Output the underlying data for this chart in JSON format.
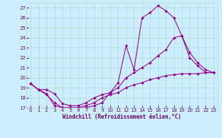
{
  "background_color": "#cceeff",
  "grid_color": "#aaddcc",
  "line_color": "#990099",
  "marker_color": "#990099",
  "xlabel": "Windchill (Refroidissement éolien,°C)",
  "xlabel_color": "#660066",
  "tick_color": "#660066",
  "xlim": [
    -0.5,
    23.5
  ],
  "ylim": [
    17,
    27.5
  ],
  "yticks": [
    17,
    18,
    19,
    20,
    21,
    22,
    23,
    24,
    25,
    26,
    27
  ],
  "xticks": [
    0,
    1,
    2,
    3,
    4,
    5,
    6,
    7,
    8,
    9,
    10,
    11,
    12,
    13,
    14,
    15,
    16,
    17,
    18,
    19,
    20,
    21,
    22,
    23
  ],
  "series": [
    {
      "x": [
        0,
        1,
        2,
        3,
        4,
        5,
        6,
        7,
        8,
        9,
        10,
        11,
        12,
        13,
        14,
        15,
        16,
        17,
        18,
        19,
        20,
        21,
        22,
        23
      ],
      "y": [
        19.4,
        18.8,
        18.4,
        17.2,
        17.0,
        17.0,
        17.0,
        17.0,
        17.2,
        17.5,
        18.5,
        19.5,
        23.2,
        20.8,
        26.0,
        26.5,
        27.2,
        26.7,
        26.0,
        24.2,
        22.0,
        21.2,
        20.5,
        20.5
      ]
    },
    {
      "x": [
        0,
        1,
        2,
        3,
        4,
        5,
        6,
        7,
        8,
        9,
        10,
        11,
        12,
        13,
        14,
        15,
        16,
        17,
        18,
        19,
        20,
        21,
        22,
        23
      ],
      "y": [
        19.4,
        18.8,
        18.8,
        18.4,
        17.4,
        17.2,
        17.2,
        17.5,
        18.0,
        18.3,
        18.5,
        19.0,
        20.0,
        20.5,
        21.0,
        21.5,
        22.2,
        22.8,
        24.0,
        24.2,
        22.5,
        21.5,
        20.8,
        20.5
      ]
    },
    {
      "x": [
        0,
        1,
        2,
        3,
        4,
        5,
        6,
        7,
        8,
        9,
        10,
        11,
        12,
        13,
        14,
        15,
        16,
        17,
        18,
        19,
        20,
        21,
        22,
        23
      ],
      "y": [
        19.4,
        18.8,
        18.3,
        17.5,
        17.0,
        17.0,
        17.0,
        17.2,
        17.5,
        18.0,
        18.3,
        18.5,
        19.0,
        19.3,
        19.5,
        19.8,
        20.0,
        20.2,
        20.3,
        20.4,
        20.4,
        20.4,
        20.5,
        20.5
      ]
    }
  ]
}
